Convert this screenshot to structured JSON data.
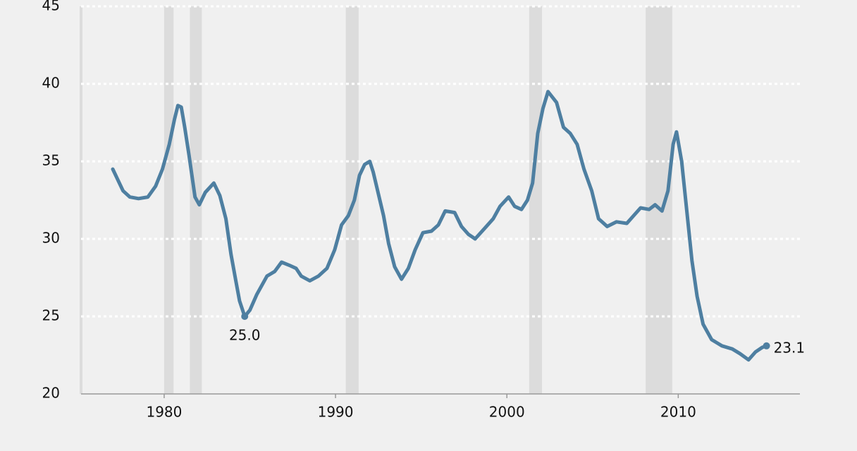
{
  "chart_data": {
    "type": "line",
    "x": [
      1977.0,
      1977.3,
      1977.6,
      1978.0,
      1978.5,
      1979.05,
      1979.5,
      1979.9,
      1980.3,
      1980.6,
      1980.8,
      1981.0,
      1981.2,
      1981.45,
      1981.8,
      1982.05,
      1982.4,
      1982.9,
      1983.25,
      1983.6,
      1983.9,
      1984.2,
      1984.4,
      1984.7,
      1985.0,
      1985.4,
      1986.0,
      1986.45,
      1986.85,
      1987.3,
      1987.7,
      1988.0,
      1988.5,
      1989.0,
      1989.5,
      1989.95,
      1990.35,
      1990.75,
      1991.1,
      1991.4,
      1991.7,
      1992.0,
      1992.2,
      1992.5,
      1992.8,
      1993.1,
      1993.45,
      1993.85,
      1994.25,
      1994.65,
      1995.1,
      1995.6,
      1996.0,
      1996.4,
      1996.95,
      1997.35,
      1997.75,
      1998.15,
      1998.8,
      1999.2,
      1999.6,
      2000.1,
      2000.45,
      2000.85,
      2001.2,
      2001.5,
      2001.8,
      2002.1,
      2002.4,
      2002.9,
      2003.3,
      2003.7,
      2004.1,
      2004.5,
      2004.95,
      2005.35,
      2005.85,
      2006.4,
      2007.0,
      2007.4,
      2007.8,
      2008.3,
      2008.65,
      2009.05,
      2009.4,
      2009.7,
      2009.9,
      2010.2,
      2010.5,
      2010.8,
      2011.1,
      2011.45,
      2011.95,
      2012.55,
      2013.15,
      2013.6,
      2014.1,
      2014.5,
      2014.9,
      2015.15
    ],
    "values": [
      34.5,
      33.8,
      33.1,
      32.7,
      32.6,
      32.7,
      33.4,
      34.5,
      36.1,
      37.7,
      38.6,
      38.5,
      37.2,
      35.4,
      32.7,
      32.2,
      33.0,
      33.6,
      32.8,
      31.3,
      29.0,
      27.2,
      26.0,
      25.0,
      25.4,
      26.4,
      27.6,
      27.9,
      28.5,
      28.3,
      28.1,
      27.6,
      27.3,
      27.6,
      28.1,
      29.3,
      30.9,
      31.5,
      32.5,
      34.1,
      34.8,
      35.0,
      34.3,
      32.9,
      31.5,
      29.7,
      28.2,
      27.4,
      28.1,
      29.3,
      30.4,
      30.5,
      30.9,
      31.8,
      31.7,
      30.8,
      30.3,
      30.0,
      30.8,
      31.3,
      32.1,
      32.7,
      32.1,
      31.9,
      32.5,
      33.6,
      36.8,
      38.4,
      39.5,
      38.8,
      37.2,
      36.8,
      36.1,
      34.5,
      33.1,
      31.3,
      30.8,
      31.1,
      31.0,
      31.5,
      32.0,
      31.9,
      32.2,
      31.8,
      33.1,
      36.1,
      36.9,
      35.0,
      31.8,
      28.6,
      26.3,
      24.5,
      23.5,
      23.1,
      22.9,
      22.6,
      22.2,
      22.7,
      23.0,
      23.1
    ],
    "value_labels": [
      null,
      null,
      null,
      null,
      null,
      null,
      null,
      null,
      null,
      null,
      null,
      null,
      null,
      null,
      null,
      null,
      null,
      null,
      null,
      null,
      null,
      null,
      null,
      "25.0",
      null,
      null,
      null,
      null,
      null,
      null,
      null,
      null,
      null,
      null,
      null,
      null,
      null,
      null,
      null,
      null,
      null,
      null,
      null,
      null,
      null,
      null,
      null,
      null,
      null,
      null,
      null,
      null,
      null,
      null,
      null,
      null,
      null,
      null,
      null,
      null,
      null,
      null,
      null,
      null,
      null,
      null,
      null,
      null,
      null,
      null,
      null,
      null,
      null,
      null,
      null,
      null,
      null,
      null,
      null,
      null,
      null,
      null,
      null,
      null,
      null,
      null,
      null,
      null,
      null,
      null,
      null,
      null,
      null,
      null,
      null,
      null,
      null,
      null,
      null,
      "23.1"
    ],
    "color": "#4e7fa1",
    "shaded_ranges": [
      [
        1980.0,
        1980.55
      ],
      [
        1981.5,
        1982.2
      ],
      [
        1990.6,
        1991.35
      ],
      [
        2001.3,
        2002.05
      ],
      [
        2008.1,
        2009.65
      ]
    ],
    "shade_color": "#dcdcdc",
    "xlim": [
      1975.15,
      2017.1
    ],
    "xticks": [
      1980,
      1990,
      2000,
      2010
    ],
    "ylim": [
      20,
      45
    ],
    "yticks": [
      20,
      25,
      30,
      35,
      40,
      45
    ],
    "grid": true
  }
}
